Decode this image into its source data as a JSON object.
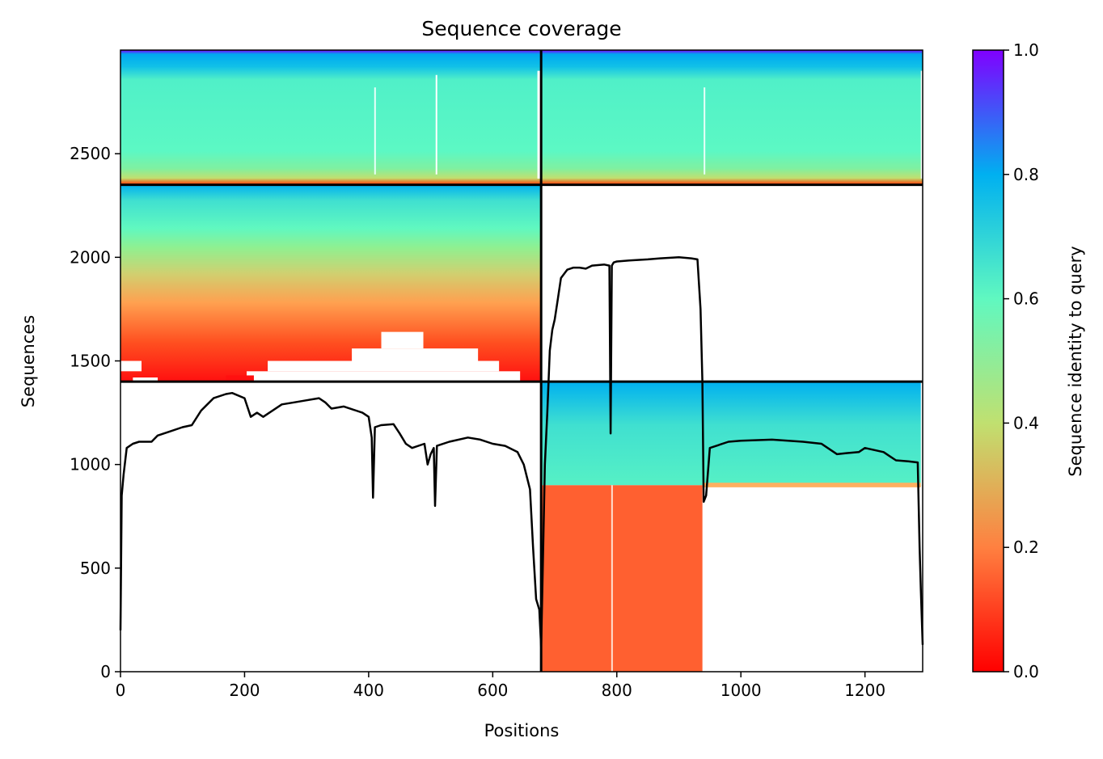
{
  "chart_data": {
    "type": "heatmap",
    "title": "Sequence coverage",
    "xlabel": "Positions",
    "ylabel": "Sequences",
    "colorbar_label": "Sequence identity to query",
    "xlim": [
      0,
      1293
    ],
    "ylim": [
      0,
      3000
    ],
    "xticks": [
      0,
      200,
      400,
      600,
      800,
      1000,
      1200
    ],
    "yticks": [
      0,
      500,
      1000,
      1500,
      2000,
      2500
    ],
    "colorbar_ticks": [
      "0.0",
      "0.2",
      "0.4",
      "0.6",
      "0.8",
      "1.0"
    ],
    "colormap": [
      "#ff0000",
      "#ff8040",
      "#c0e070",
      "#60f8c0",
      "#00b0f0",
      "#8000ff"
    ],
    "block_boundaries": {
      "x": [
        0,
        678,
        1293
      ],
      "y": [
        0,
        1400,
        2350,
        3000
      ]
    },
    "blocks": [
      {
        "region": "top-left",
        "x": [
          0,
          678
        ],
        "y": [
          2350,
          3000
        ],
        "identity_range": [
          0.05,
          1.0
        ]
      },
      {
        "region": "top-right",
        "x": [
          678,
          1293
        ],
        "y": [
          2350,
          3000
        ],
        "identity_range": [
          0.05,
          1.0
        ]
      },
      {
        "region": "middle-left",
        "x": [
          0,
          678
        ],
        "y": [
          1400,
          2350
        ],
        "identity_range": [
          0.05,
          0.8
        ]
      },
      {
        "region": "bottom-right",
        "x": [
          678,
          1293
        ],
        "y": [
          0,
          1400
        ],
        "identity_range": [
          0.12,
          0.8
        ]
      }
    ],
    "coverage_line": {
      "name": "",
      "x": [
        0,
        2,
        5,
        10,
        20,
        30,
        50,
        60,
        80,
        100,
        115,
        130,
        150,
        170,
        180,
        200,
        210,
        220,
        230,
        240,
        260,
        280,
        300,
        320,
        330,
        340,
        360,
        380,
        390,
        400,
        405,
        407,
        410,
        420,
        440,
        450,
        460,
        470,
        490,
        495,
        500,
        505,
        507,
        510,
        530,
        560,
        580,
        600,
        620,
        640,
        650,
        660,
        665,
        670,
        675,
        678,
        680,
        684,
        688,
        692,
        696,
        700,
        705,
        710,
        720,
        730,
        740,
        750,
        760,
        780,
        788,
        790,
        792,
        795,
        800,
        820,
        850,
        870,
        900,
        920,
        930,
        935,
        938,
        940,
        944,
        950,
        980,
        1000,
        1050,
        1100,
        1130,
        1155,
        1170,
        1190,
        1200,
        1230,
        1240,
        1250,
        1270,
        1285,
        1288,
        1290,
        1293
      ],
      "y": [
        200,
        850,
        950,
        1080,
        1100,
        1110,
        1110,
        1140,
        1160,
        1180,
        1190,
        1260,
        1320,
        1340,
        1345,
        1320,
        1230,
        1250,
        1230,
        1250,
        1290,
        1300,
        1310,
        1320,
        1300,
        1270,
        1280,
        1260,
        1250,
        1230,
        1130,
        840,
        1180,
        1190,
        1195,
        1150,
        1100,
        1080,
        1100,
        1000,
        1050,
        1080,
        800,
        1090,
        1110,
        1130,
        1120,
        1100,
        1090,
        1060,
        1000,
        880,
        600,
        350,
        300,
        120,
        400,
        1000,
        1250,
        1550,
        1650,
        1700,
        1800,
        1900,
        1940,
        1950,
        1950,
        1945,
        1960,
        1965,
        1960,
        1150,
        1960,
        1975,
        1980,
        1985,
        1990,
        1995,
        2000,
        1995,
        1990,
        1750,
        1400,
        820,
        850,
        1080,
        1110,
        1115,
        1120,
        1110,
        1100,
        1050,
        1055,
        1060,
        1080,
        1060,
        1040,
        1020,
        1015,
        1010,
        600,
        400,
        130
      ]
    }
  }
}
